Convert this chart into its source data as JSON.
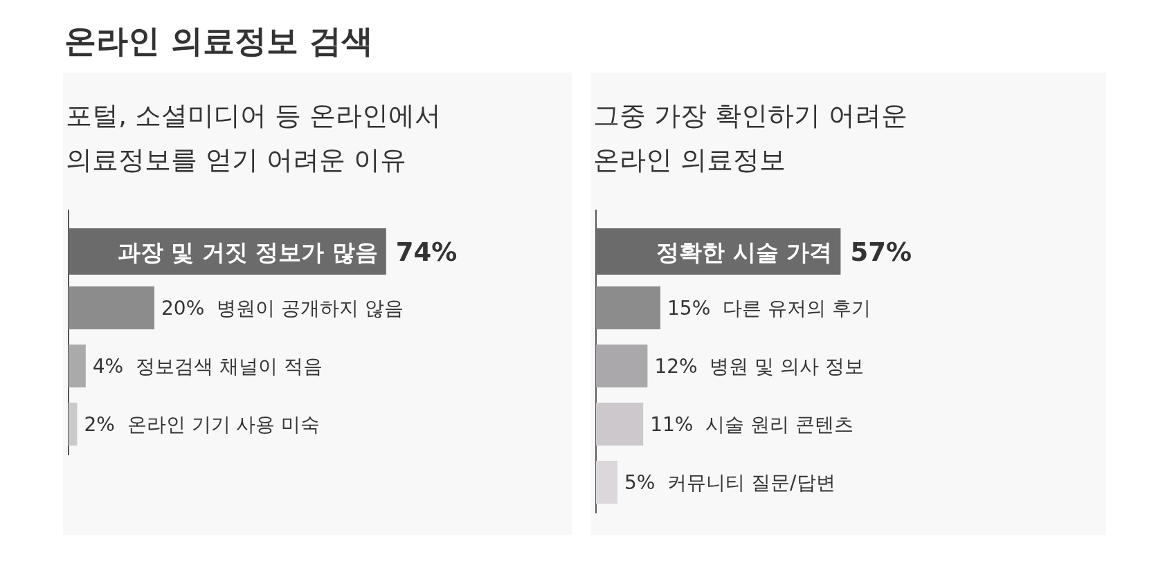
{
  "chart_data": [
    {
      "type": "bar",
      "orientation": "horizontal",
      "title": "온라인 의료정보 검색",
      "subtitle": "포털, 소셜미디어 등 온라인에서\n의료정보를 얻기 어려운 이유",
      "categories": [
        "과장 및 거짓 정보가 많음",
        "병원이 공개하지 않음",
        "정보검색 채널이 적음",
        "온라인 기기 사용 미숙"
      ],
      "values": [
        74,
        20,
        4,
        2
      ],
      "value_labels": [
        "74%",
        "20%",
        "4%",
        "2%"
      ],
      "colors": [
        "#6b6b6b",
        "#8c8c8c",
        "#aaaaaa",
        "#ccc9cc"
      ]
    },
    {
      "type": "bar",
      "orientation": "horizontal",
      "subtitle": "그중 가장 확인하기 어려운\n온라인 의료정보",
      "categories": [
        "정확한 시술 가격",
        "다른 유저의 후기",
        "병원 및 의사 정보",
        "시술 원리 콘텐츠",
        "커뮤니티 질문/답변"
      ],
      "values": [
        57,
        15,
        12,
        11,
        5
      ],
      "value_labels": [
        "57%",
        "15%",
        "12%",
        "11%",
        "5%"
      ],
      "colors": [
        "#6b6b6b",
        "#8c8c8c",
        "#aaa8aa",
        "#ccc8cc",
        "#dbd7db"
      ]
    }
  ]
}
